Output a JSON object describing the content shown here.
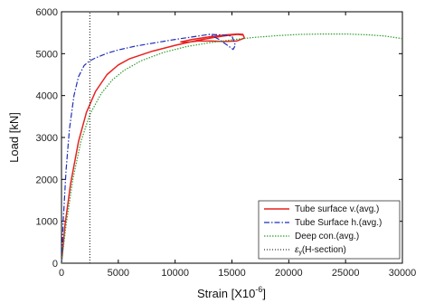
{
  "chart_data": {
    "type": "line",
    "xlabel": "Strain [X10",
    "xlabel_exp": "-6",
    "xlabel_end": "]",
    "ylabel": "Load [kN]",
    "xlim": [
      0,
      30000
    ],
    "ylim": [
      0,
      6000
    ],
    "x_ticks": [
      "0",
      "5000",
      "10000",
      "15000",
      "20000",
      "25000",
      "30000"
    ],
    "y_ticks": [
      "0",
      "1000",
      "2000",
      "3000",
      "4000",
      "5000",
      "6000"
    ],
    "legend_position": "bottom-right",
    "grid": false,
    "series": [
      {
        "name": "Tube surface v.(avg.)",
        "color": "#e8211f",
        "dash": "solid",
        "x": [
          0,
          300,
          800,
          1500,
          2200,
          3000,
          4000,
          5000,
          6000,
          8000,
          10000,
          12000,
          13500,
          14500,
          15500,
          16000,
          16100,
          15400,
          14300,
          13200,
          12000,
          11000,
          10500,
          11500,
          13000,
          14500,
          15500,
          16000
        ],
        "y": [
          0,
          900,
          1900,
          2900,
          3600,
          4100,
          4500,
          4730,
          4880,
          5060,
          5200,
          5320,
          5390,
          5430,
          5460,
          5440,
          5370,
          5300,
          5290,
          5300,
          5300,
          5270,
          5280,
          5340,
          5400,
          5450,
          5470,
          5460
        ]
      },
      {
        "name": "Tube Surface h.(avg.)",
        "color": "#1f2fb8",
        "dash": "dashdot",
        "x": [
          0,
          150,
          400,
          700,
          1100,
          1500,
          2000,
          2500,
          3000,
          4000,
          5000,
          6500,
          8000,
          10000,
          12000,
          13000,
          14000,
          15000,
          15300,
          15100,
          14500,
          13800,
          13000
        ],
        "y": [
          0,
          1000,
          2200,
          3200,
          4000,
          4450,
          4720,
          4830,
          4900,
          5010,
          5090,
          5180,
          5250,
          5340,
          5420,
          5460,
          5450,
          5420,
          5200,
          5100,
          5220,
          5350,
          5460
        ]
      },
      {
        "name": "Deep con.(avg.)",
        "color": "#2e9e2e",
        "dash": "dotted",
        "x": [
          0,
          400,
          1000,
          1700,
          2500,
          3500,
          4500,
          5500,
          7000,
          9000,
          11000,
          13000,
          15000,
          17000,
          19000,
          21000,
          23000,
          25000,
          27000,
          28500,
          30000
        ],
        "y": [
          0,
          900,
          2000,
          2900,
          3550,
          4050,
          4380,
          4600,
          4830,
          5030,
          5170,
          5260,
          5330,
          5390,
          5430,
          5460,
          5470,
          5470,
          5450,
          5420,
          5360
        ]
      },
      {
        "name": "ε",
        "name_sub": "y",
        "name_rest": "(H-section)",
        "color": "#333333",
        "dash": "dense-dotted",
        "x": [
          2500,
          2500
        ],
        "y": [
          0,
          6000
        ]
      }
    ]
  }
}
